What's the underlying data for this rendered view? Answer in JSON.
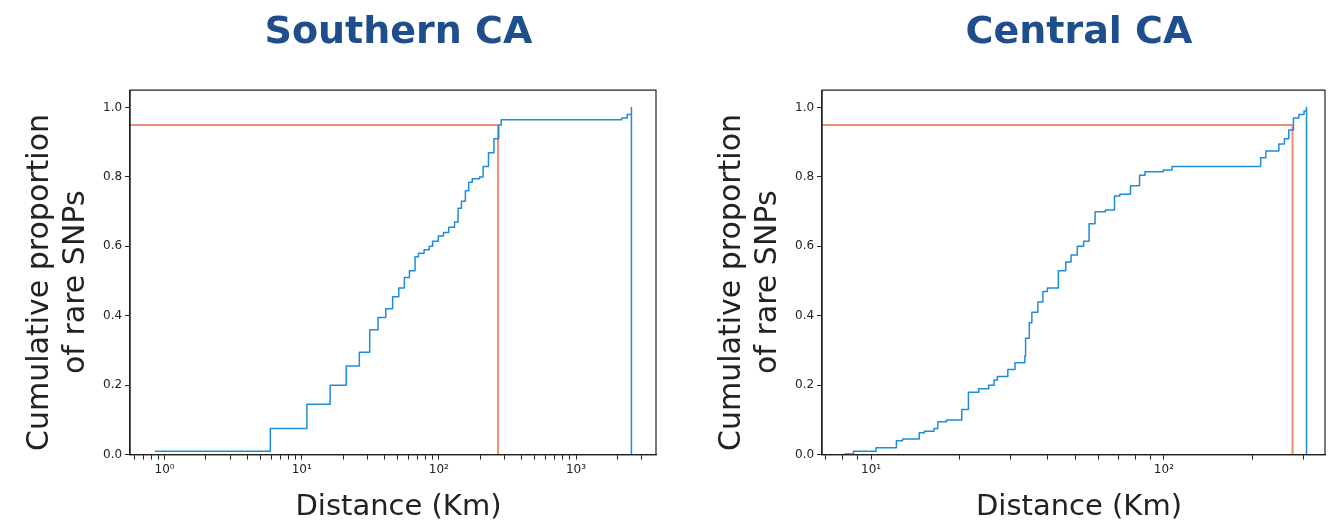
{
  "chart_data": [
    {
      "type": "step",
      "title": "Southern CA",
      "xlabel": "Distance (Km)",
      "ylabel": "Cumulative proportion of rare SNPs",
      "log": "x",
      "grid": false,
      "legend": false,
      "marker": "none",
      "xlim": [
        0.56,
        3830
      ],
      "ylim": [
        0,
        1.05
      ],
      "xticks": [
        {
          "value": 0.6,
          "label": null
        },
        {
          "value": 0.7,
          "label": null
        },
        {
          "value": 0.8,
          "label": null
        },
        {
          "value": 0.9,
          "label": null
        },
        {
          "value": 1,
          "label": "10⁰"
        },
        {
          "value": 2,
          "label": null
        },
        {
          "value": 3,
          "label": null
        },
        {
          "value": 4,
          "label": null
        },
        {
          "value": 5,
          "label": null
        },
        {
          "value": 6,
          "label": null
        },
        {
          "value": 7,
          "label": null
        },
        {
          "value": 8,
          "label": null
        },
        {
          "value": 9,
          "label": null
        },
        {
          "value": 10,
          "label": "10¹"
        },
        {
          "value": 20,
          "label": null
        },
        {
          "value": 30,
          "label": null
        },
        {
          "value": 40,
          "label": null
        },
        {
          "value": 50,
          "label": null
        },
        {
          "value": 60,
          "label": null
        },
        {
          "value": 70,
          "label": null
        },
        {
          "value": 80,
          "label": null
        },
        {
          "value": 90,
          "label": null
        },
        {
          "value": 100,
          "label": "10²"
        },
        {
          "value": 200,
          "label": null
        },
        {
          "value": 300,
          "label": null
        },
        {
          "value": 400,
          "label": null
        },
        {
          "value": 500,
          "label": null
        },
        {
          "value": 600,
          "label": null
        },
        {
          "value": 700,
          "label": null
        },
        {
          "value": 800,
          "label": null
        },
        {
          "value": 900,
          "label": null
        },
        {
          "value": 1000,
          "label": "10³"
        },
        {
          "value": 2000,
          "label": null
        },
        {
          "value": 3000,
          "label": null
        }
      ],
      "yticks": [
        {
          "value": 0,
          "label": "0.0"
        },
        {
          "value": 0.2,
          "label": "0.2"
        },
        {
          "value": 0.4,
          "label": "0.4"
        },
        {
          "value": 0.6,
          "label": "0.6"
        },
        {
          "value": 0.8,
          "label": "0.8"
        },
        {
          "value": 1,
          "label": "1.0"
        }
      ],
      "series": [
        {
          "type": "step",
          "color": "#1f8dd6",
          "x": [
            0.85,
            5.9,
            10.9,
            16.1,
            21.1,
            26.3,
            31.3,
            36,
            41,
            46,
            51,
            56,
            61,
            67,
            71,
            78,
            85,
            90,
            99,
            108,
            118,
            130,
            138,
            146,
            156,
            165,
            175,
            198,
            210,
            230,
            252,
            273,
            285,
            2155,
            2360,
            2535,
            2535
          ],
          "values": [
            0.01,
            0.075,
            0.145,
            0.2,
            0.255,
            0.295,
            0.36,
            0.395,
            0.42,
            0.455,
            0.48,
            0.51,
            0.53,
            0.57,
            0.58,
            0.59,
            0.6,
            0.615,
            0.63,
            0.64,
            0.655,
            0.67,
            0.71,
            0.73,
            0.76,
            0.785,
            0.795,
            0.8,
            0.83,
            0.87,
            0.91,
            0.95,
            0.965,
            0.97,
            0.98,
            1.0,
            0
          ]
        },
        {
          "type": "line",
          "color": "#f08a75",
          "x": [
            0.56,
            270,
            270
          ],
          "values": [
            0.95,
            0.95,
            0
          ]
        }
      ]
    },
    {
      "type": "step",
      "title": "Central CA",
      "xlabel": "Distance (Km)",
      "ylabel": "Cumulative proportion of rare SNPs",
      "log": "x",
      "grid": false,
      "legend": false,
      "marker": "none",
      "xlim": [
        6.8,
        355
      ],
      "ylim": [
        0,
        1.05
      ],
      "xticks": [
        {
          "value": 7,
          "label": null
        },
        {
          "value": 8,
          "label": null
        },
        {
          "value": 9,
          "label": null
        },
        {
          "value": 10,
          "label": "10¹"
        },
        {
          "value": 20,
          "label": null
        },
        {
          "value": 30,
          "label": null
        },
        {
          "value": 40,
          "label": null
        },
        {
          "value": 50,
          "label": null
        },
        {
          "value": 60,
          "label": null
        },
        {
          "value": 70,
          "label": null
        },
        {
          "value": 80,
          "label": null
        },
        {
          "value": 90,
          "label": null
        },
        {
          "value": 100,
          "label": "10²"
        },
        {
          "value": 200,
          "label": null
        },
        {
          "value": 300,
          "label": null
        }
      ],
      "yticks": [
        {
          "value": 0,
          "label": "0.0"
        },
        {
          "value": 0.2,
          "label": "0.2"
        },
        {
          "value": 0.4,
          "label": "0.4"
        },
        {
          "value": 0.6,
          "label": "0.6"
        },
        {
          "value": 0.8,
          "label": "0.8"
        },
        {
          "value": 1,
          "label": "1.0"
        }
      ],
      "series": [
        {
          "type": "step",
          "color": "#1f8dd6",
          "x": [
            8.1,
            8.7,
            10.4,
            12.2,
            12.8,
            14.6,
            15.2,
            16.4,
            16.9,
            18.1,
            20.4,
            21.5,
            23.3,
            25.2,
            26.3,
            27,
            29.3,
            31,
            33.5,
            33.7,
            34.7,
            35.4,
            37.1,
            38.6,
            40,
            43.6,
            46.2,
            48.2,
            50.6,
            53.2,
            55.5,
            58.2,
            63.1,
            67.8,
            70.7,
            76.9,
            82.6,
            86.2,
            99.5,
            106.7,
            214,
            223,
            247,
            258,
            267,
            277,
            289,
            301,
            307,
            307
          ],
          "values": [
            0.002,
            0.01,
            0.02,
            0.04,
            0.045,
            0.063,
            0.067,
            0.075,
            0.095,
            0.1,
            0.13,
            0.18,
            0.19,
            0.2,
            0.215,
            0.225,
            0.245,
            0.265,
            0.285,
            0.335,
            0.38,
            0.41,
            0.44,
            0.47,
            0.48,
            0.53,
            0.555,
            0.575,
            0.6,
            0.615,
            0.665,
            0.7,
            0.705,
            0.745,
            0.75,
            0.775,
            0.805,
            0.815,
            0.82,
            0.83,
            0.855,
            0.875,
            0.895,
            0.91,
            0.935,
            0.97,
            0.98,
            0.99,
            1.0,
            0
          ]
        },
        {
          "type": "line",
          "color": "#f08a75",
          "x": [
            6.8,
            275,
            275
          ],
          "values": [
            0.95,
            0.95,
            0
          ]
        }
      ]
    }
  ]
}
